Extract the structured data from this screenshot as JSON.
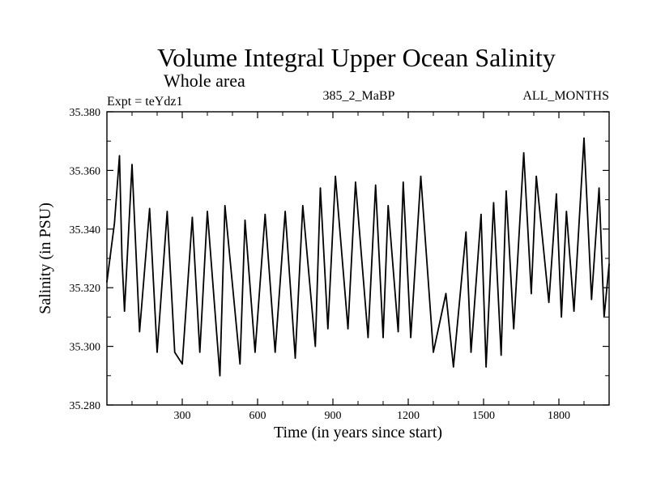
{
  "chart_data": {
    "type": "line",
    "title": "Volume Integral Upper Ocean Salinity",
    "subtitle": "Whole area",
    "experiment": "Expt = teYdz1",
    "run": "385_2_MaBP",
    "months": "ALL_MONTHS",
    "xlabel": "Time (in years since start)",
    "ylabel": "Salinity (in PSU)",
    "xlim": [
      0,
      2000
    ],
    "ylim": [
      35.28,
      35.38
    ],
    "xticks": [
      300,
      600,
      900,
      1200,
      1500,
      1800
    ],
    "xtick_labels": [
      "300",
      "600",
      "900",
      "1200",
      "1500",
      "1800"
    ],
    "yticks": [
      35.28,
      35.3,
      35.32,
      35.34,
      35.36,
      35.38
    ],
    "ytick_labels": [
      "35.280",
      "35.300",
      "35.320",
      "35.340",
      "35.360",
      "35.380"
    ],
    "series": [
      {
        "name": "Salinity",
        "color": "#000000",
        "x": [
          0,
          30,
          50,
          60,
          70,
          100,
          130,
          170,
          200,
          240,
          270,
          300,
          340,
          370,
          400,
          450,
          470,
          530,
          550,
          590,
          630,
          670,
          710,
          750,
          780,
          830,
          850,
          880,
          910,
          960,
          990,
          1040,
          1070,
          1100,
          1120,
          1160,
          1180,
          1210,
          1250,
          1300,
          1350,
          1380,
          1430,
          1450,
          1490,
          1510,
          1540,
          1570,
          1590,
          1620,
          1660,
          1690,
          1710,
          1760,
          1790,
          1810,
          1830,
          1860,
          1900,
          1930,
          1960,
          1980,
          2000
        ],
        "y": [
          35.322,
          35.342,
          35.365,
          35.33,
          35.312,
          35.362,
          35.305,
          35.347,
          35.298,
          35.346,
          35.298,
          35.294,
          35.344,
          35.298,
          35.346,
          35.29,
          35.348,
          35.294,
          35.343,
          35.298,
          35.345,
          35.298,
          35.346,
          35.296,
          35.348,
          35.3,
          35.354,
          35.306,
          35.358,
          35.306,
          35.356,
          35.303,
          35.355,
          35.303,
          35.348,
          35.305,
          35.356,
          35.303,
          35.358,
          35.298,
          35.318,
          35.293,
          35.339,
          35.298,
          35.345,
          35.293,
          35.349,
          35.297,
          35.353,
          35.306,
          35.366,
          35.318,
          35.358,
          35.315,
          35.352,
          35.31,
          35.346,
          35.312,
          35.371,
          35.316,
          35.354,
          35.31,
          35.328
        ]
      }
    ]
  }
}
